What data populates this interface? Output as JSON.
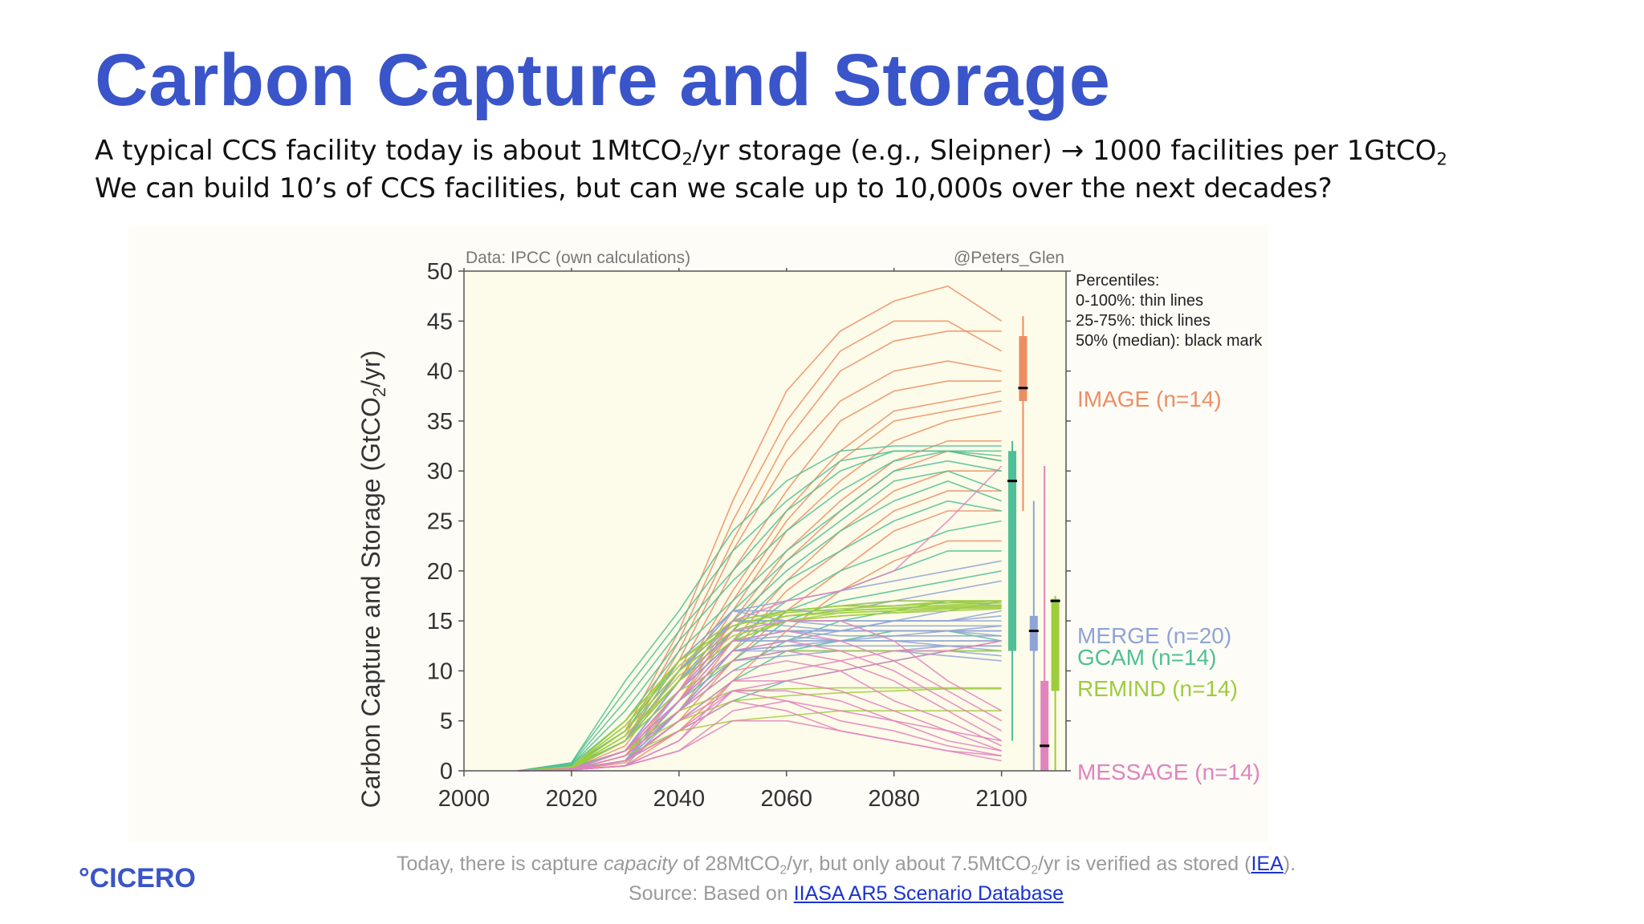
{
  "slide": {
    "title": "Carbon Capture and Storage",
    "line1": {
      "a": "A typical CCS facility today is about 1MtCO",
      "sub1": "2",
      "b": "/yr storage (e.g., Sleipner) → 1000 facilities per 1GtCO",
      "sub2": "2"
    },
    "line2": "We can build 10’s of CCS facilities, but can we scale up to 10,000s over the next decades?",
    "note": {
      "a": "Today, there is capture ",
      "em": "capacity",
      "b": " of 28MtCO",
      "sub1": "2",
      "c": "/yr, but only about 7.5MtCO",
      "sub2": "2",
      "d": "/yr is verified as stored (",
      "link": "IEA",
      "e": ")."
    },
    "source": {
      "a": "Source: Based on ",
      "link": "IIASA AR5 Scenario Database"
    },
    "logo": "°CICERO"
  },
  "chart_data": {
    "type": "line",
    "credit_left": "Data: IPCC (own calculations)",
    "credit_right": "@Peters_Glen",
    "ylabel_main": "Carbon Capture and Storage (GtCO",
    "ylabel_sub": "2",
    "ylabel_end": "/yr)",
    "xlim": [
      2000,
      2112
    ],
    "ylim": [
      0,
      50
    ],
    "xticks": [
      "2000",
      "2020",
      "2040",
      "2060",
      "2080",
      "2100"
    ],
    "yticks": [
      "0",
      "5",
      "10",
      "15",
      "20",
      "25",
      "30",
      "35",
      "40",
      "45",
      "50"
    ],
    "legend": [
      "Percentiles:",
      "0-100%: thin lines",
      "25-75%: thick lines",
      "50% (median): black mark"
    ],
    "years": [
      2010,
      2020,
      2030,
      2040,
      2050,
      2060,
      2070,
      2080,
      2090,
      2100
    ],
    "models": [
      {
        "name": "IMAGE (n=14)",
        "color": "#ec8e64",
        "label_y": 37,
        "box": {
          "x": 2104,
          "min": 26,
          "q1": 37,
          "median": 38.3,
          "q3": 43.5,
          "max": 45.5
        },
        "series": [
          [
            0,
            0.3,
            4,
            14,
            27,
            38,
            44,
            47,
            48.5,
            45
          ],
          [
            0,
            0.3,
            3.5,
            13,
            25,
            35,
            42,
            45,
            45,
            42
          ],
          [
            0,
            0.2,
            3,
            12,
            23,
            33,
            40,
            43,
            44,
            44
          ],
          [
            0,
            0.2,
            3,
            11,
            22,
            31,
            37,
            40,
            41,
            40
          ],
          [
            0,
            0.2,
            2.5,
            10,
            20,
            28,
            35,
            38,
            39,
            39
          ],
          [
            0,
            0.1,
            2,
            9,
            18,
            26,
            32,
            36,
            37,
            38
          ],
          [
            0,
            0.1,
            2,
            9,
            17,
            25,
            31,
            35,
            36,
            37
          ],
          [
            0,
            0.1,
            1.5,
            8,
            16,
            24,
            29,
            33,
            35,
            36
          ],
          [
            0,
            0.1,
            1.5,
            7,
            15,
            22,
            27,
            31,
            33,
            33
          ],
          [
            0,
            0.1,
            1,
            7,
            14,
            21,
            26,
            30,
            32,
            31
          ],
          [
            0,
            0.1,
            1,
            6,
            13,
            19,
            24,
            28,
            30,
            30
          ],
          [
            0,
            0.1,
            1,
            6,
            12,
            18,
            22,
            26,
            28,
            28
          ],
          [
            0,
            0.1,
            0.8,
            5,
            11,
            16,
            20,
            24,
            26,
            26
          ],
          [
            0,
            0.1,
            0.5,
            4,
            9,
            14,
            18,
            21,
            23,
            23
          ]
        ]
      },
      {
        "name": "GCAM  (n=14)",
        "color": "#4fbf95",
        "label_y": 11.5,
        "box": {
          "x": 2102,
          "min": 3,
          "q1": 12,
          "median": 29,
          "q3": 32,
          "max": 33
        },
        "series": [
          [
            0,
            0.8,
            9,
            16,
            24,
            29,
            32,
            32.5,
            32.5,
            32.5
          ],
          [
            0,
            0.8,
            8,
            15,
            22,
            27,
            31,
            32,
            32,
            32
          ],
          [
            0,
            0.7,
            7,
            14,
            20,
            26,
            30,
            32,
            32,
            31.5
          ],
          [
            0,
            0.6,
            6,
            13,
            19,
            24,
            28,
            31,
            32,
            31
          ],
          [
            0,
            0.6,
            5,
            12,
            17,
            22,
            26,
            30,
            31,
            30
          ],
          [
            0,
            0.5,
            4,
            11,
            16,
            21,
            25,
            29,
            30,
            28
          ],
          [
            0,
            0.5,
            4,
            10,
            15,
            20,
            24,
            27,
            29,
            27
          ],
          [
            0,
            0.4,
            3,
            9,
            14,
            19,
            22,
            25,
            27,
            26
          ],
          [
            0,
            0.4,
            3,
            8,
            13,
            17,
            20,
            22,
            24,
            25
          ],
          [
            0,
            0.3,
            2,
            7,
            12,
            16,
            18,
            20,
            22,
            22
          ],
          [
            0,
            0.3,
            2,
            7,
            11,
            15,
            17,
            18,
            19,
            20
          ],
          [
            0,
            0.3,
            2,
            6,
            10,
            13,
            15,
            16,
            17,
            17
          ],
          [
            0,
            0.2,
            1,
            5,
            9,
            12,
            13,
            14,
            14,
            13
          ],
          [
            0,
            0.2,
            1,
            4,
            7,
            9,
            10,
            11,
            12,
            12
          ]
        ]
      },
      {
        "name": "MERGE (n=20)",
        "color": "#8ea3d6",
        "label_y": 13.5,
        "box": {
          "x": 2106,
          "min": 0,
          "q1": 12,
          "median": 14,
          "q3": 15.5,
          "max": 27
        },
        "series": [
          [
            0,
            0.2,
            3,
            10,
            16,
            15,
            15,
            15,
            15,
            15
          ],
          [
            0,
            0.2,
            3,
            10,
            15,
            15,
            14.5,
            14.5,
            14.5,
            14.5
          ],
          [
            0,
            0.2,
            2,
            9,
            15,
            14.5,
            14,
            14,
            14,
            14
          ],
          [
            0,
            0.2,
            2,
            9,
            14,
            14,
            14,
            14,
            14,
            13.5
          ],
          [
            0,
            0.1,
            2,
            8,
            14,
            14,
            13.5,
            13.5,
            13.5,
            13.5
          ],
          [
            0,
            0.1,
            1,
            8,
            13,
            13.5,
            13,
            13,
            13,
            13
          ],
          [
            0,
            0.1,
            1,
            7,
            13,
            13,
            13,
            13,
            12.5,
            12.5
          ],
          [
            0,
            0.1,
            1,
            7,
            12,
            12.5,
            12.5,
            12.5,
            12.5,
            12
          ],
          [
            0,
            0.1,
            1,
            6,
            12,
            12,
            12,
            12,
            12,
            11.5
          ],
          [
            0,
            0.1,
            0.5,
            6,
            11,
            12,
            12,
            12,
            11.5,
            11
          ],
          [
            0,
            0.2,
            3,
            11,
            16,
            16,
            16.5,
            17,
            17,
            16.5
          ],
          [
            0,
            0.2,
            3,
            10,
            15,
            15,
            15,
            15,
            15,
            15.5
          ],
          [
            0,
            0.2,
            2,
            9,
            14,
            14,
            14,
            14,
            14,
            14.5
          ],
          [
            0,
            0.1,
            2,
            8,
            13,
            13,
            13,
            13.5,
            14,
            14
          ],
          [
            0,
            0.1,
            1,
            7,
            12,
            12.5,
            13,
            13,
            13,
            13
          ],
          [
            0,
            0.1,
            1,
            6,
            11,
            11.5,
            12,
            12,
            12.5,
            12.5
          ],
          [
            0,
            0.2,
            3,
            10,
            16,
            17,
            18,
            19,
            20,
            21
          ],
          [
            0,
            0.2,
            2,
            9,
            15,
            16,
            16,
            17,
            18,
            19
          ],
          [
            0,
            0.1,
            2,
            8,
            13,
            14,
            14,
            15,
            16,
            17
          ],
          [
            0,
            0.1,
            1,
            6,
            12,
            13,
            14,
            15,
            15,
            16
          ]
        ]
      },
      {
        "name": "REMIND (n=14)",
        "color": "#9dcc3c",
        "label_y": 8.3,
        "box": {
          "x": 2110,
          "min": 0,
          "q1": 8,
          "median": 17,
          "q3": 17.2,
          "max": 17.5
        },
        "series": [
          [
            0,
            0.4,
            5,
            11,
            15,
            16,
            16.5,
            16.5,
            17,
            17
          ],
          [
            0,
            0.4,
            5,
            11,
            15,
            16,
            16.5,
            17,
            17,
            17
          ],
          [
            0,
            0.4,
            4.5,
            11,
            14.5,
            16,
            16.5,
            16.5,
            16.8,
            17
          ],
          [
            0,
            0.4,
            4.5,
            10.5,
            14.5,
            15.8,
            16.2,
            16.5,
            16.8,
            16.8
          ],
          [
            0,
            0.3,
            4,
            10,
            14,
            15.5,
            16,
            16.3,
            16.6,
            16.8
          ],
          [
            0,
            0.3,
            4,
            10,
            14,
            15.5,
            16,
            16.2,
            16.5,
            16.6
          ],
          [
            0,
            0.3,
            4,
            10,
            14,
            15.5,
            15.8,
            16,
            16.4,
            16.5
          ],
          [
            0,
            0.3,
            3.5,
            9.5,
            13.5,
            15,
            15.8,
            16,
            16.3,
            16.4
          ],
          [
            0,
            0.3,
            3.5,
            9,
            13,
            15,
            15.5,
            15.8,
            16.2,
            16.3
          ],
          [
            0,
            0.3,
            3,
            9,
            13,
            15,
            15.5,
            15.8,
            16,
            16.2
          ],
          [
            0,
            0.2,
            3,
            8,
            11,
            12,
            12,
            12,
            12,
            12
          ],
          [
            0,
            0.2,
            2,
            6,
            8,
            8.2,
            8.3,
            8.3,
            8.3,
            8.3
          ],
          [
            0,
            0.2,
            2,
            5,
            7,
            7.5,
            7.8,
            8,
            8.2,
            8.2
          ],
          [
            0,
            0.1,
            1.5,
            4,
            5,
            5.5,
            6,
            6,
            6,
            6
          ]
        ]
      },
      {
        "name": "MESSAGE (n=14)",
        "color": "#e083bf",
        "label_y": 0,
        "box": {
          "x": 2108,
          "min": 0,
          "q1": 0,
          "median": 2.5,
          "q3": 9,
          "max": 30.5
        },
        "series": [
          [
            0,
            0.2,
            2,
            8,
            15,
            17,
            18,
            20,
            25,
            30.5
          ],
          [
            0,
            0.2,
            2,
            8,
            14,
            15,
            15,
            13,
            9,
            6
          ],
          [
            0,
            0.2,
            2,
            7,
            13,
            14,
            13,
            11,
            8,
            5
          ],
          [
            0,
            0.2,
            2,
            7,
            12,
            13,
            12,
            10,
            7,
            4
          ],
          [
            0,
            0.1,
            1.5,
            6,
            11,
            12,
            11,
            9,
            6,
            3
          ],
          [
            0,
            0.1,
            1.5,
            6,
            10,
            11,
            10,
            7,
            5,
            2.5
          ],
          [
            0,
            0.1,
            1,
            5,
            9,
            9,
            8,
            6,
            4,
            2
          ],
          [
            0,
            0.1,
            1,
            5,
            8,
            8,
            7,
            5,
            3,
            2
          ],
          [
            0,
            0.1,
            1,
            4,
            8,
            7,
            5,
            4,
            2.5,
            1.5
          ],
          [
            0,
            0.1,
            1,
            4,
            7,
            6,
            4,
            3,
            2,
            1
          ],
          [
            0,
            0.1,
            0.5,
            3,
            8,
            9,
            10,
            11,
            12,
            13
          ],
          [
            0,
            0.1,
            0.5,
            3,
            9,
            10,
            11,
            12,
            12,
            13
          ],
          [
            0,
            0.1,
            0.5,
            2,
            6,
            7,
            6,
            5,
            4,
            3
          ],
          [
            0,
            0.1,
            0.5,
            2,
            5,
            5,
            4,
            3,
            2,
            1.5
          ]
        ]
      }
    ]
  }
}
